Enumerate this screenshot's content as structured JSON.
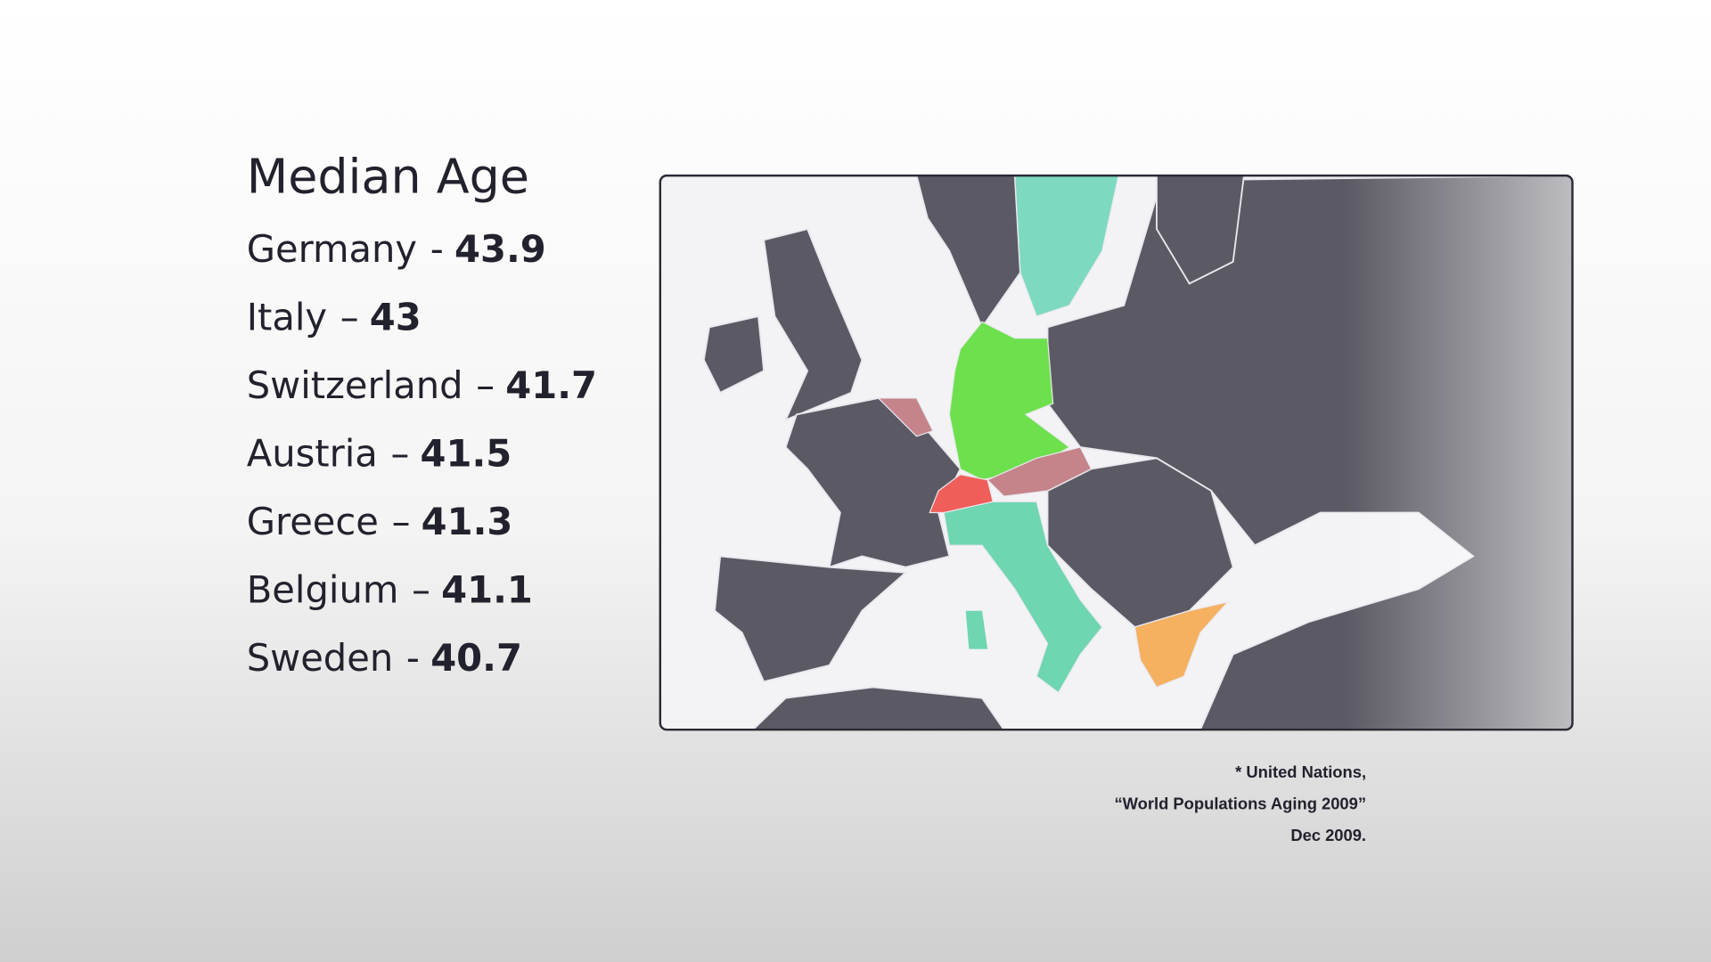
{
  "title": "Median Age",
  "entries": [
    {
      "country": "Germany",
      "separator": "-",
      "value": 43.9
    },
    {
      "country": "Italy",
      "separator": "–",
      "value": 43
    },
    {
      "country": "Switzerland",
      "separator": "–",
      "value": 41.7
    },
    {
      "country": "Austria",
      "separator": "–",
      "value": 41.5
    },
    {
      "country": "Greece",
      "separator": "–",
      "value": 41.3
    },
    {
      "country": "Belgium",
      "separator": "–",
      "value": 41.1
    },
    {
      "country": "Sweden",
      "separator": "-",
      "value": 40.7
    }
  ],
  "source": [
    "* United Nations,",
    "“World Populations Aging 2009”",
    "Dec 2009."
  ]
}
